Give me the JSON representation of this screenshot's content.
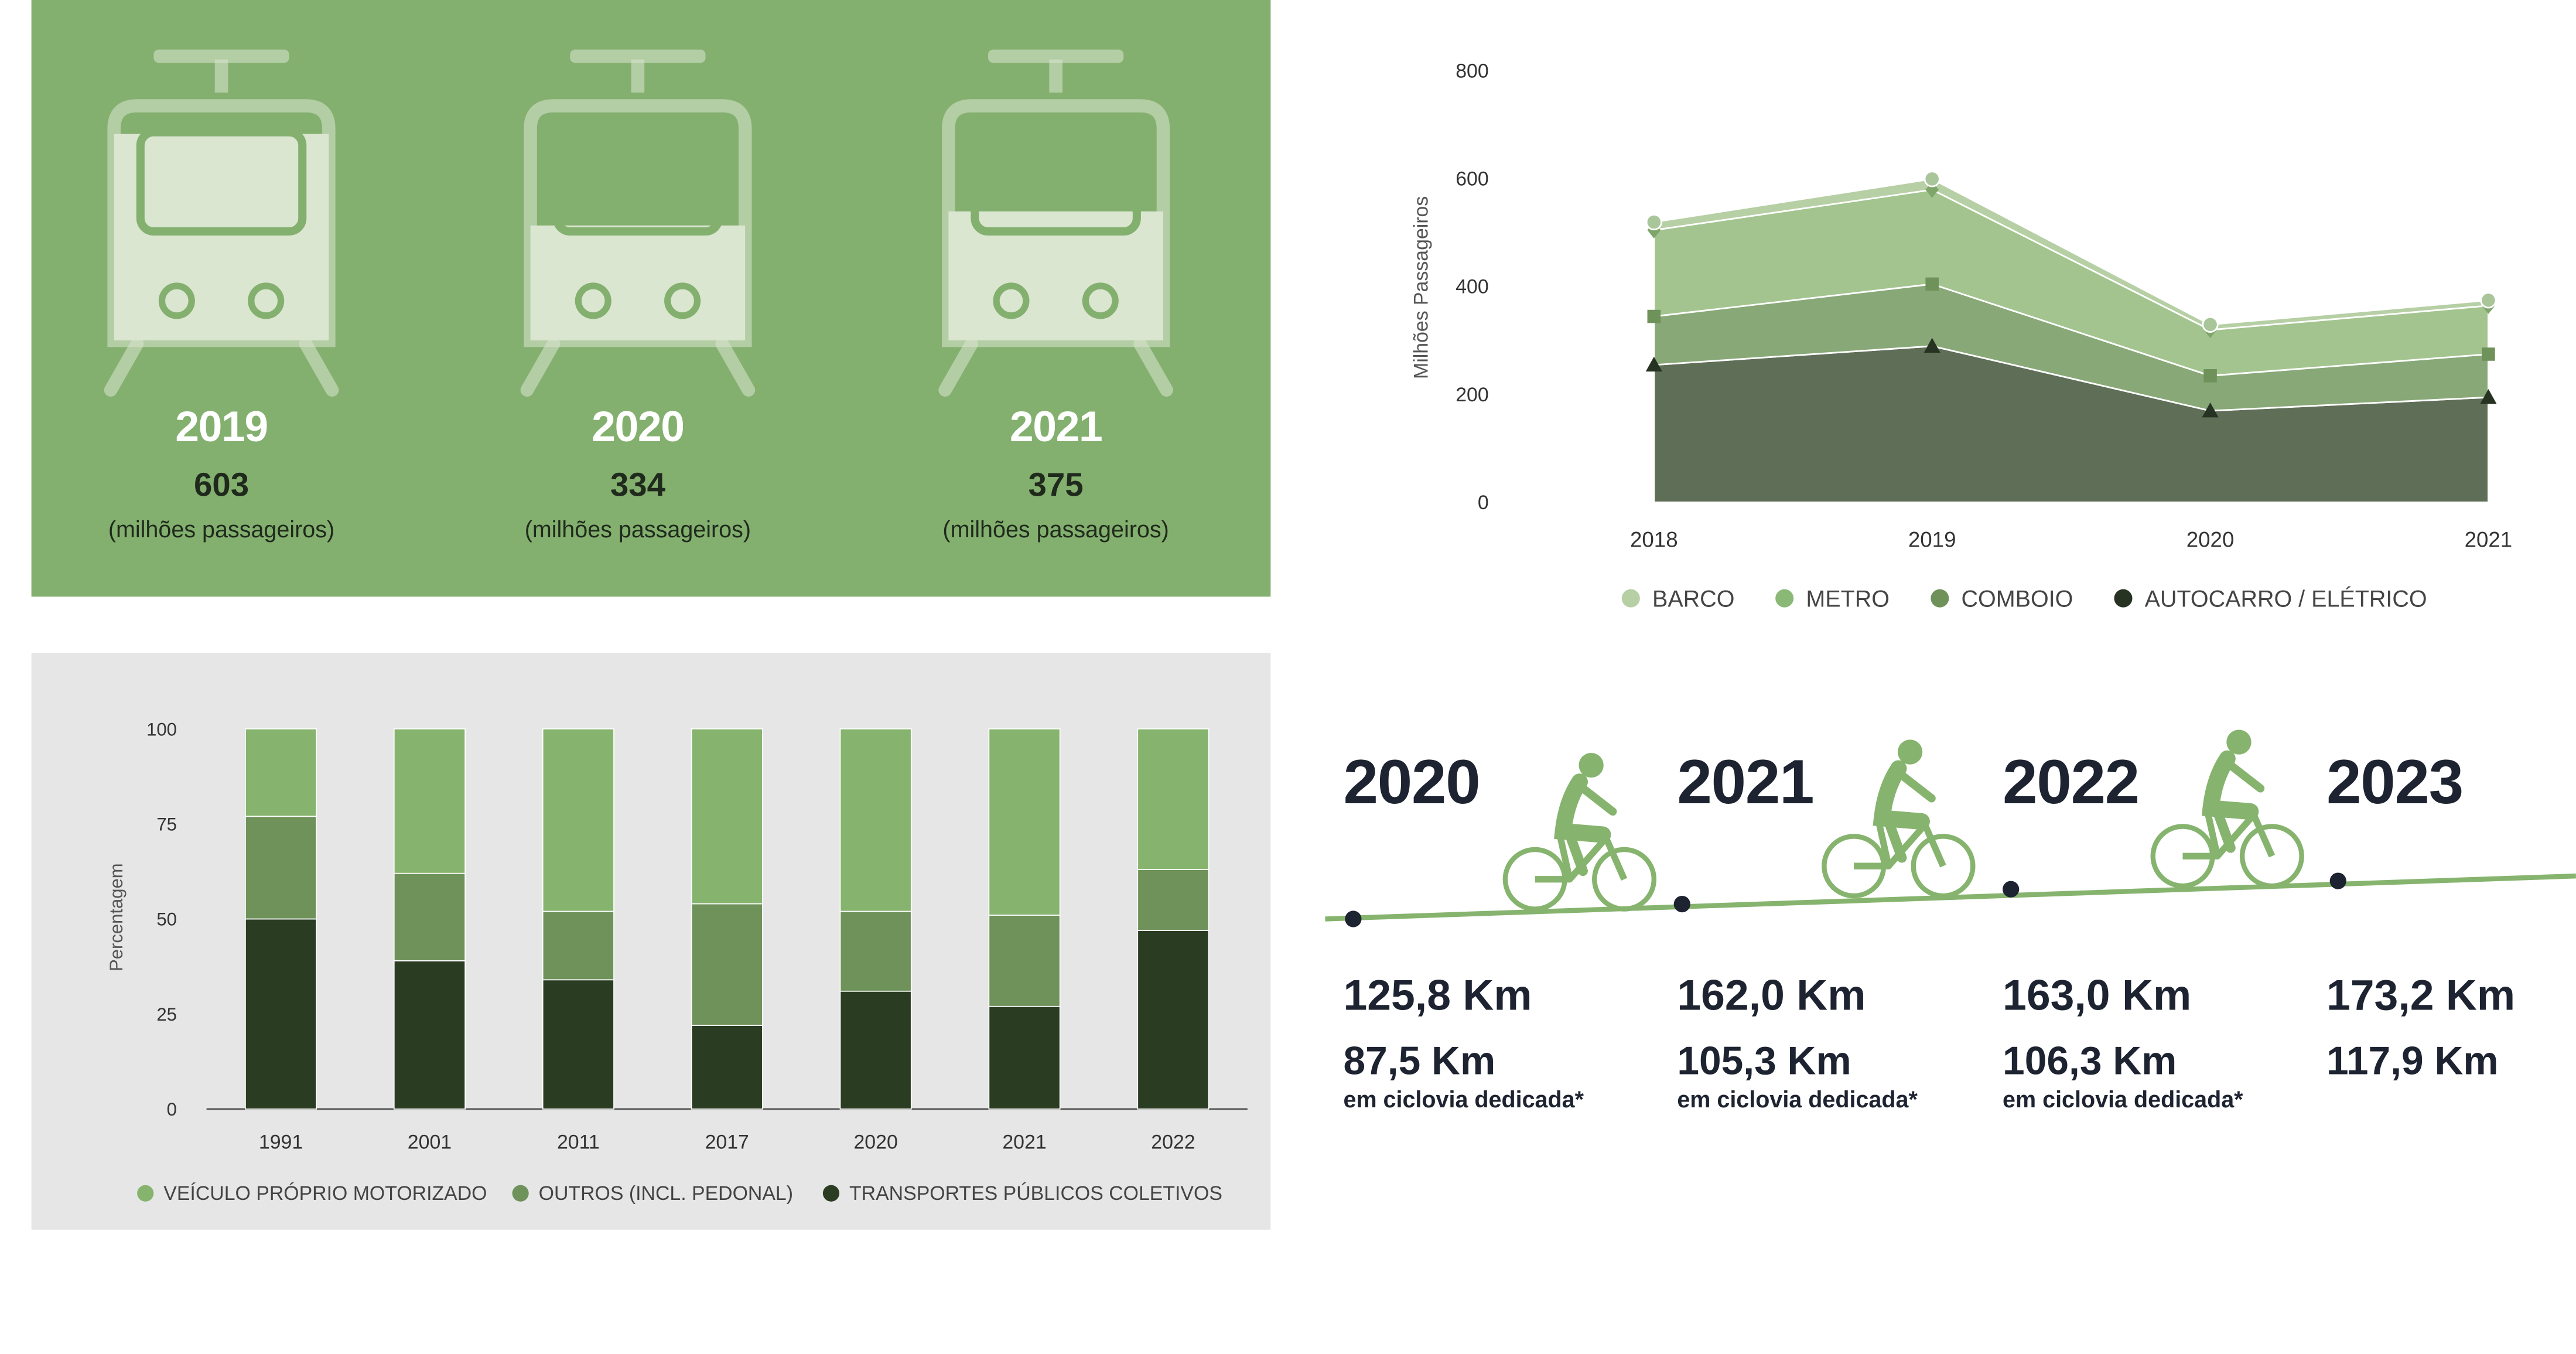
{
  "colors": {
    "panel_green": "#84b06f",
    "train_light": "#dbe6d0",
    "barco": "#b6cfa4",
    "metro": "#a3c48f",
    "comboio": "#88a877",
    "autocarro": "#5f6e57",
    "bar_veiculo": "#86b46e",
    "bar_outros": "#6e925a",
    "bar_tp": "#2a3d23",
    "bike_green": "#86b46e",
    "dark_text": "#1d2330"
  },
  "trains": [
    {
      "year": "2019",
      "value": "603",
      "unit": "(milhões passageiros)",
      "fill_fraction": 0.88
    },
    {
      "year": "2020",
      "value": "334",
      "unit": "(milhões passageiros)",
      "fill_fraction": 0.49
    },
    {
      "year": "2021",
      "value": "375",
      "unit": "(milhões passageiros)",
      "fill_fraction": 0.55
    }
  ],
  "chart_data": [
    {
      "type": "area",
      "stacked": true,
      "title": "",
      "xlabel": "",
      "ylabel": "Milhões Passageiros",
      "ylim": [
        0,
        800
      ],
      "yticks": [
        0,
        200,
        400,
        600,
        800
      ],
      "x": [
        "2018",
        "2019",
        "2020",
        "2021"
      ],
      "series": [
        {
          "name": "AUTOCARRO / ELÉTRICO",
          "values": [
            255,
            290,
            170,
            195
          ]
        },
        {
          "name": "COMBOIO",
          "values": [
            90,
            115,
            65,
            80
          ]
        },
        {
          "name": "METRO",
          "values": [
            160,
            175,
            85,
            90
          ]
        },
        {
          "name": "BARCO",
          "values": [
            15,
            20,
            10,
            10
          ]
        }
      ],
      "legend_position": "bottom"
    },
    {
      "type": "bar",
      "stacked": true,
      "title": "",
      "xlabel": "",
      "ylabel": "Percentagem",
      "ylim": [
        0,
        100
      ],
      "yticks": [
        0,
        25,
        50,
        75,
        100
      ],
      "categories": [
        "1991",
        "2001",
        "2011",
        "2017",
        "2020",
        "2021",
        "2022"
      ],
      "series": [
        {
          "name": "TRANSPORTES PÚBLICOS COLETIVOS",
          "values": [
            50,
            39,
            34,
            22,
            31,
            27,
            47
          ]
        },
        {
          "name": "OUTROS (INCL. PEDONAL)",
          "values": [
            27,
            23,
            18,
            32,
            21,
            24,
            16
          ]
        },
        {
          "name": "VEÍCULO PRÓPRIO MOTORIZADO",
          "values": [
            23,
            38,
            48,
            46,
            48,
            49,
            37
          ]
        }
      ],
      "legend_position": "bottom"
    }
  ],
  "bike": [
    {
      "year": "2020",
      "total": "125,8 Km",
      "dedicated": "87,5 Km",
      "note": "em ciclovia dedicada*"
    },
    {
      "year": "2021",
      "total": "162,0 Km",
      "dedicated": "105,3 Km",
      "note": "em ciclovia dedicada*"
    },
    {
      "year": "2022",
      "total": "163,0 Km",
      "dedicated": "106,3 Km",
      "note": "em ciclovia dedicada*"
    },
    {
      "year": "2023",
      "total": "173,2 Km",
      "dedicated": "117,9 Km",
      "note": ""
    }
  ]
}
